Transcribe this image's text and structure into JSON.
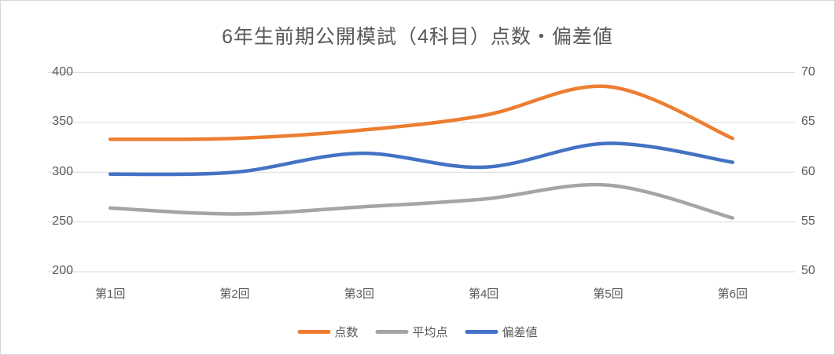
{
  "title": "6年生前期公開模試（4科目）点数・偏差値",
  "colors": {
    "score": "#ED7D31",
    "average": "#A5A5A5",
    "deviation": "#4472C4",
    "title_text": "#595959",
    "axis_text": "#595959",
    "gridline": "#D9D9D9",
    "background": "#FFFFFF"
  },
  "chart_data": {
    "type": "line",
    "smooth": true,
    "title": "6年生前期公開模試（4科目）点数・偏差値",
    "categories": [
      "第1回",
      "第2回",
      "第3回",
      "第4回",
      "第5回",
      "第6回"
    ],
    "series": [
      {
        "name": "点数",
        "axis": "left",
        "color": "#ED7D31",
        "values": [
          333,
          334,
          342,
          357,
          386,
          334
        ]
      },
      {
        "name": "平均点",
        "axis": "left",
        "color": "#A5A5A5",
        "values": [
          264,
          258,
          265,
          273,
          287,
          254
        ]
      },
      {
        "name": "偏差値",
        "axis": "right",
        "color": "#4472C4",
        "values": [
          59.8,
          60,
          61.9,
          60.5,
          62.9,
          61
        ]
      }
    ],
    "left_axis": {
      "ticks": [
        400,
        350,
        300,
        250,
        200
      ],
      "min": 200,
      "max": 400
    },
    "right_axis": {
      "ticks": [
        70,
        65,
        60,
        55,
        50
      ],
      "min": 50,
      "max": 70
    },
    "grid": true,
    "legend_position": "bottom"
  }
}
